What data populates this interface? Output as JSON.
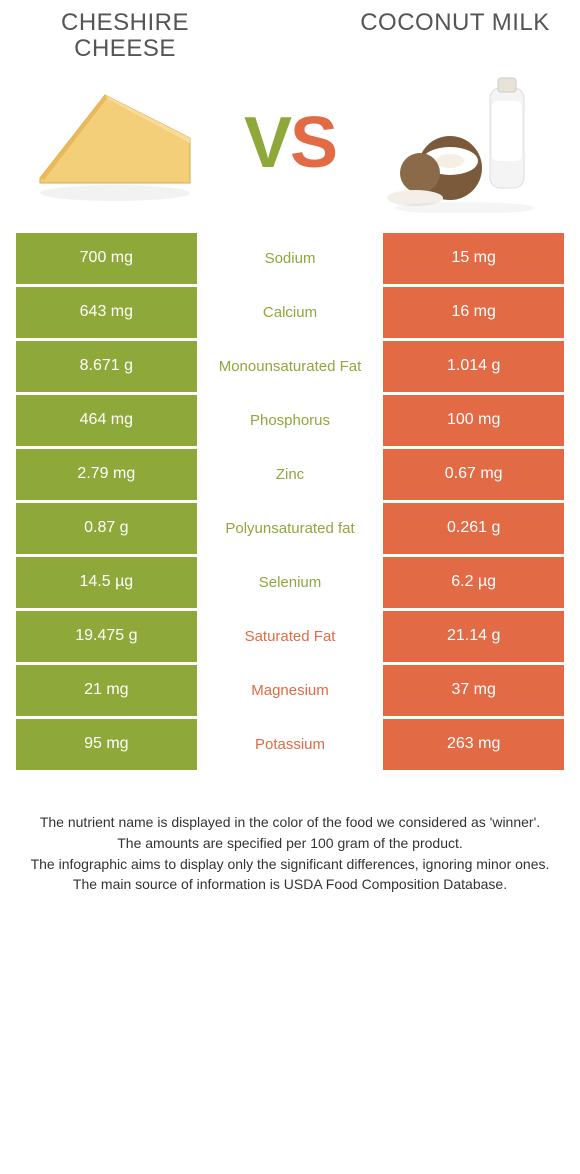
{
  "left_title": "CHESHIRE CHEESE",
  "right_title": "COCONUT MILK",
  "vs_v": "V",
  "vs_s": "S",
  "colors": {
    "left": "#8fa83a",
    "right": "#e26a45",
    "bg": "#ffffff",
    "text": "#333333"
  },
  "rows": [
    {
      "left": "700 mg",
      "name": "Sodium",
      "winner": "left",
      "right": "15 mg"
    },
    {
      "left": "643 mg",
      "name": "Calcium",
      "winner": "left",
      "right": "16 mg"
    },
    {
      "left": "8.671 g",
      "name": "Monounsaturated Fat",
      "winner": "left",
      "right": "1.014 g"
    },
    {
      "left": "464 mg",
      "name": "Phosphorus",
      "winner": "left",
      "right": "100 mg"
    },
    {
      "left": "2.79 mg",
      "name": "Zinc",
      "winner": "left",
      "right": "0.67 mg"
    },
    {
      "left": "0.87 g",
      "name": "Polyunsaturated fat",
      "winner": "left",
      "right": "0.261 g"
    },
    {
      "left": "14.5 µg",
      "name": "Selenium",
      "winner": "left",
      "right": "6.2 µg"
    },
    {
      "left": "19.475 g",
      "name": "Saturated Fat",
      "winner": "right",
      "right": "21.14 g"
    },
    {
      "left": "21 mg",
      "name": "Magnesium",
      "winner": "right",
      "right": "37 mg"
    },
    {
      "left": "95 mg",
      "name": "Potassium",
      "winner": "right",
      "right": "263 mg"
    }
  ],
  "footer": [
    "The nutrient name is displayed in the color of the food we considered as 'winner'.",
    "The amounts are specified per 100 gram of the product.",
    "The infographic aims to display only the significant differences, ignoring minor ones.",
    "The main source of information is USDA Food Composition Database."
  ]
}
